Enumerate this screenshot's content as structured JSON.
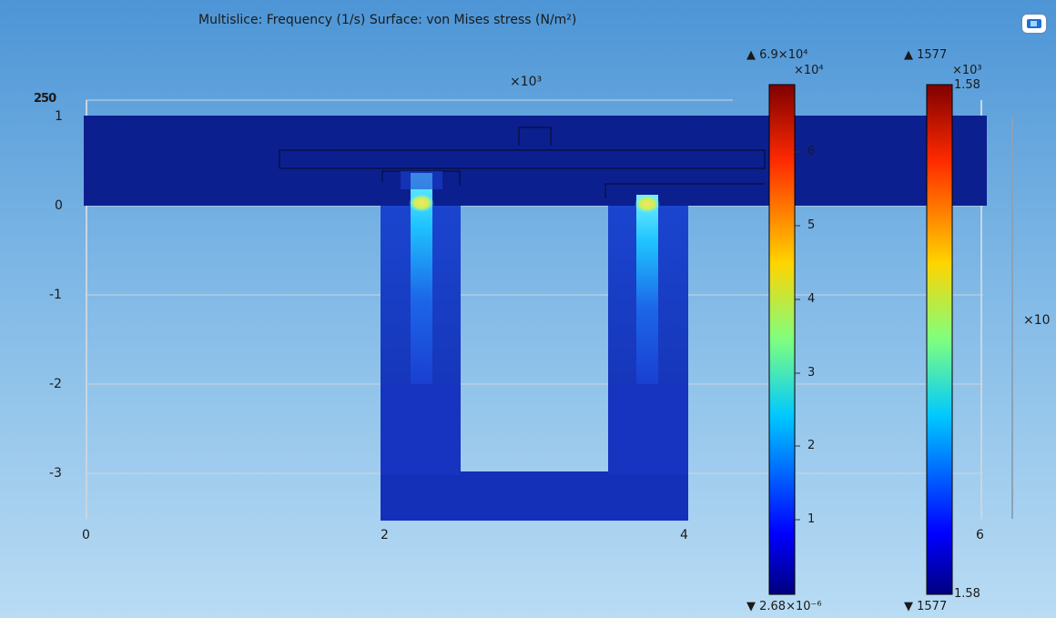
{
  "plot": {
    "title": "Multislice: Frequency (1/s)  Surface: von Mises stress (N/m²)",
    "top_left_axis_label": "250",
    "multiplier_top": "×10³",
    "multiplier_right": "×10",
    "x_ticks": [
      "0",
      "2",
      "4",
      "6"
    ],
    "y_ticks": [
      "1",
      "0",
      "-1",
      "-2",
      "-3"
    ]
  },
  "colorbar_stress": {
    "max_label": "▲ 6.9×10⁴",
    "min_label": "▼ 2.68×10⁻⁶",
    "multiplier": "×10⁴",
    "ticks": [
      "6",
      "5",
      "4",
      "3",
      "2",
      "1"
    ]
  },
  "colorbar_frequency": {
    "max_label": "▲ 1577",
    "min_label": "▼ 1577",
    "multiplier": "×10³",
    "top_value": "1.58",
    "bottom_value": "1.58"
  },
  "colors": {
    "background_top": "#4d95d6",
    "background_bottom": "#b9dcf4",
    "structure": "#0c1f8f",
    "hotspot": "#f5e14a"
  },
  "toolbar": {
    "view_button_icon": "camera-view-icon"
  }
}
